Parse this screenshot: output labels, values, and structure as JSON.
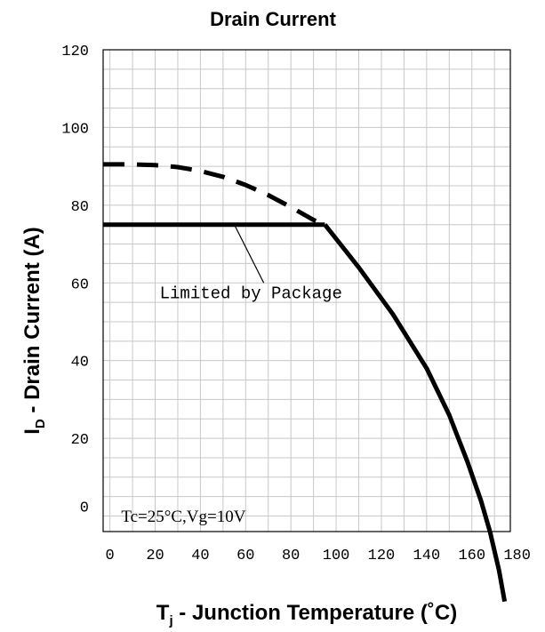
{
  "chart_data": {
    "type": "line",
    "title": "Drain Current",
    "ylabel": {
      "main": "I",
      "sub": "D",
      "rest": " - Drain Current (A)"
    },
    "xlabel": {
      "main": "T",
      "sub": "j",
      "rest": " - Junction Temperature (˚C)"
    },
    "xlim": [
      -3,
      177
    ],
    "ylim": [
      -4,
      120
    ],
    "xticks": [
      "0",
      "20",
      "40",
      "60",
      "80",
      "100",
      "120",
      "140",
      "160",
      "180"
    ],
    "xtick_values": [
      0,
      20,
      40,
      60,
      80,
      100,
      120,
      140,
      160,
      180
    ],
    "yticks": [
      "0",
      "20",
      "40",
      "60",
      "80",
      "100",
      "120"
    ],
    "ytick_values": [
      0,
      20,
      40,
      60,
      80,
      100,
      120
    ],
    "grid": true,
    "series": [
      {
        "style": "dashed",
        "x": [
          -3,
          10,
          20,
          30,
          40,
          50,
          60,
          70,
          80,
          90,
          95
        ],
        "y": [
          90.5,
          90.5,
          90.3,
          89.8,
          88.8,
          87.3,
          85.2,
          82.6,
          79.5,
          76.2,
          75
        ]
      },
      {
        "style": "solid",
        "x": [
          -3,
          95
        ],
        "y": [
          75,
          75
        ]
      },
      {
        "style": "solid",
        "x": [
          95,
          110,
          125,
          140,
          150,
          158,
          164,
          168,
          172,
          174.5
        ],
        "y": [
          75,
          64,
          52,
          38,
          26,
          14,
          4,
          -4,
          -14,
          -22
        ]
      }
    ],
    "annotations": [
      {
        "text": "Limited by Package",
        "x": 22,
        "y": 56,
        "pointer_from": [
          68,
          60
        ],
        "pointer_to": [
          55,
          75
        ]
      },
      {
        "text": "Tc=25°C,Vg=10V",
        "x": 5,
        "y": -1.5
      }
    ]
  }
}
